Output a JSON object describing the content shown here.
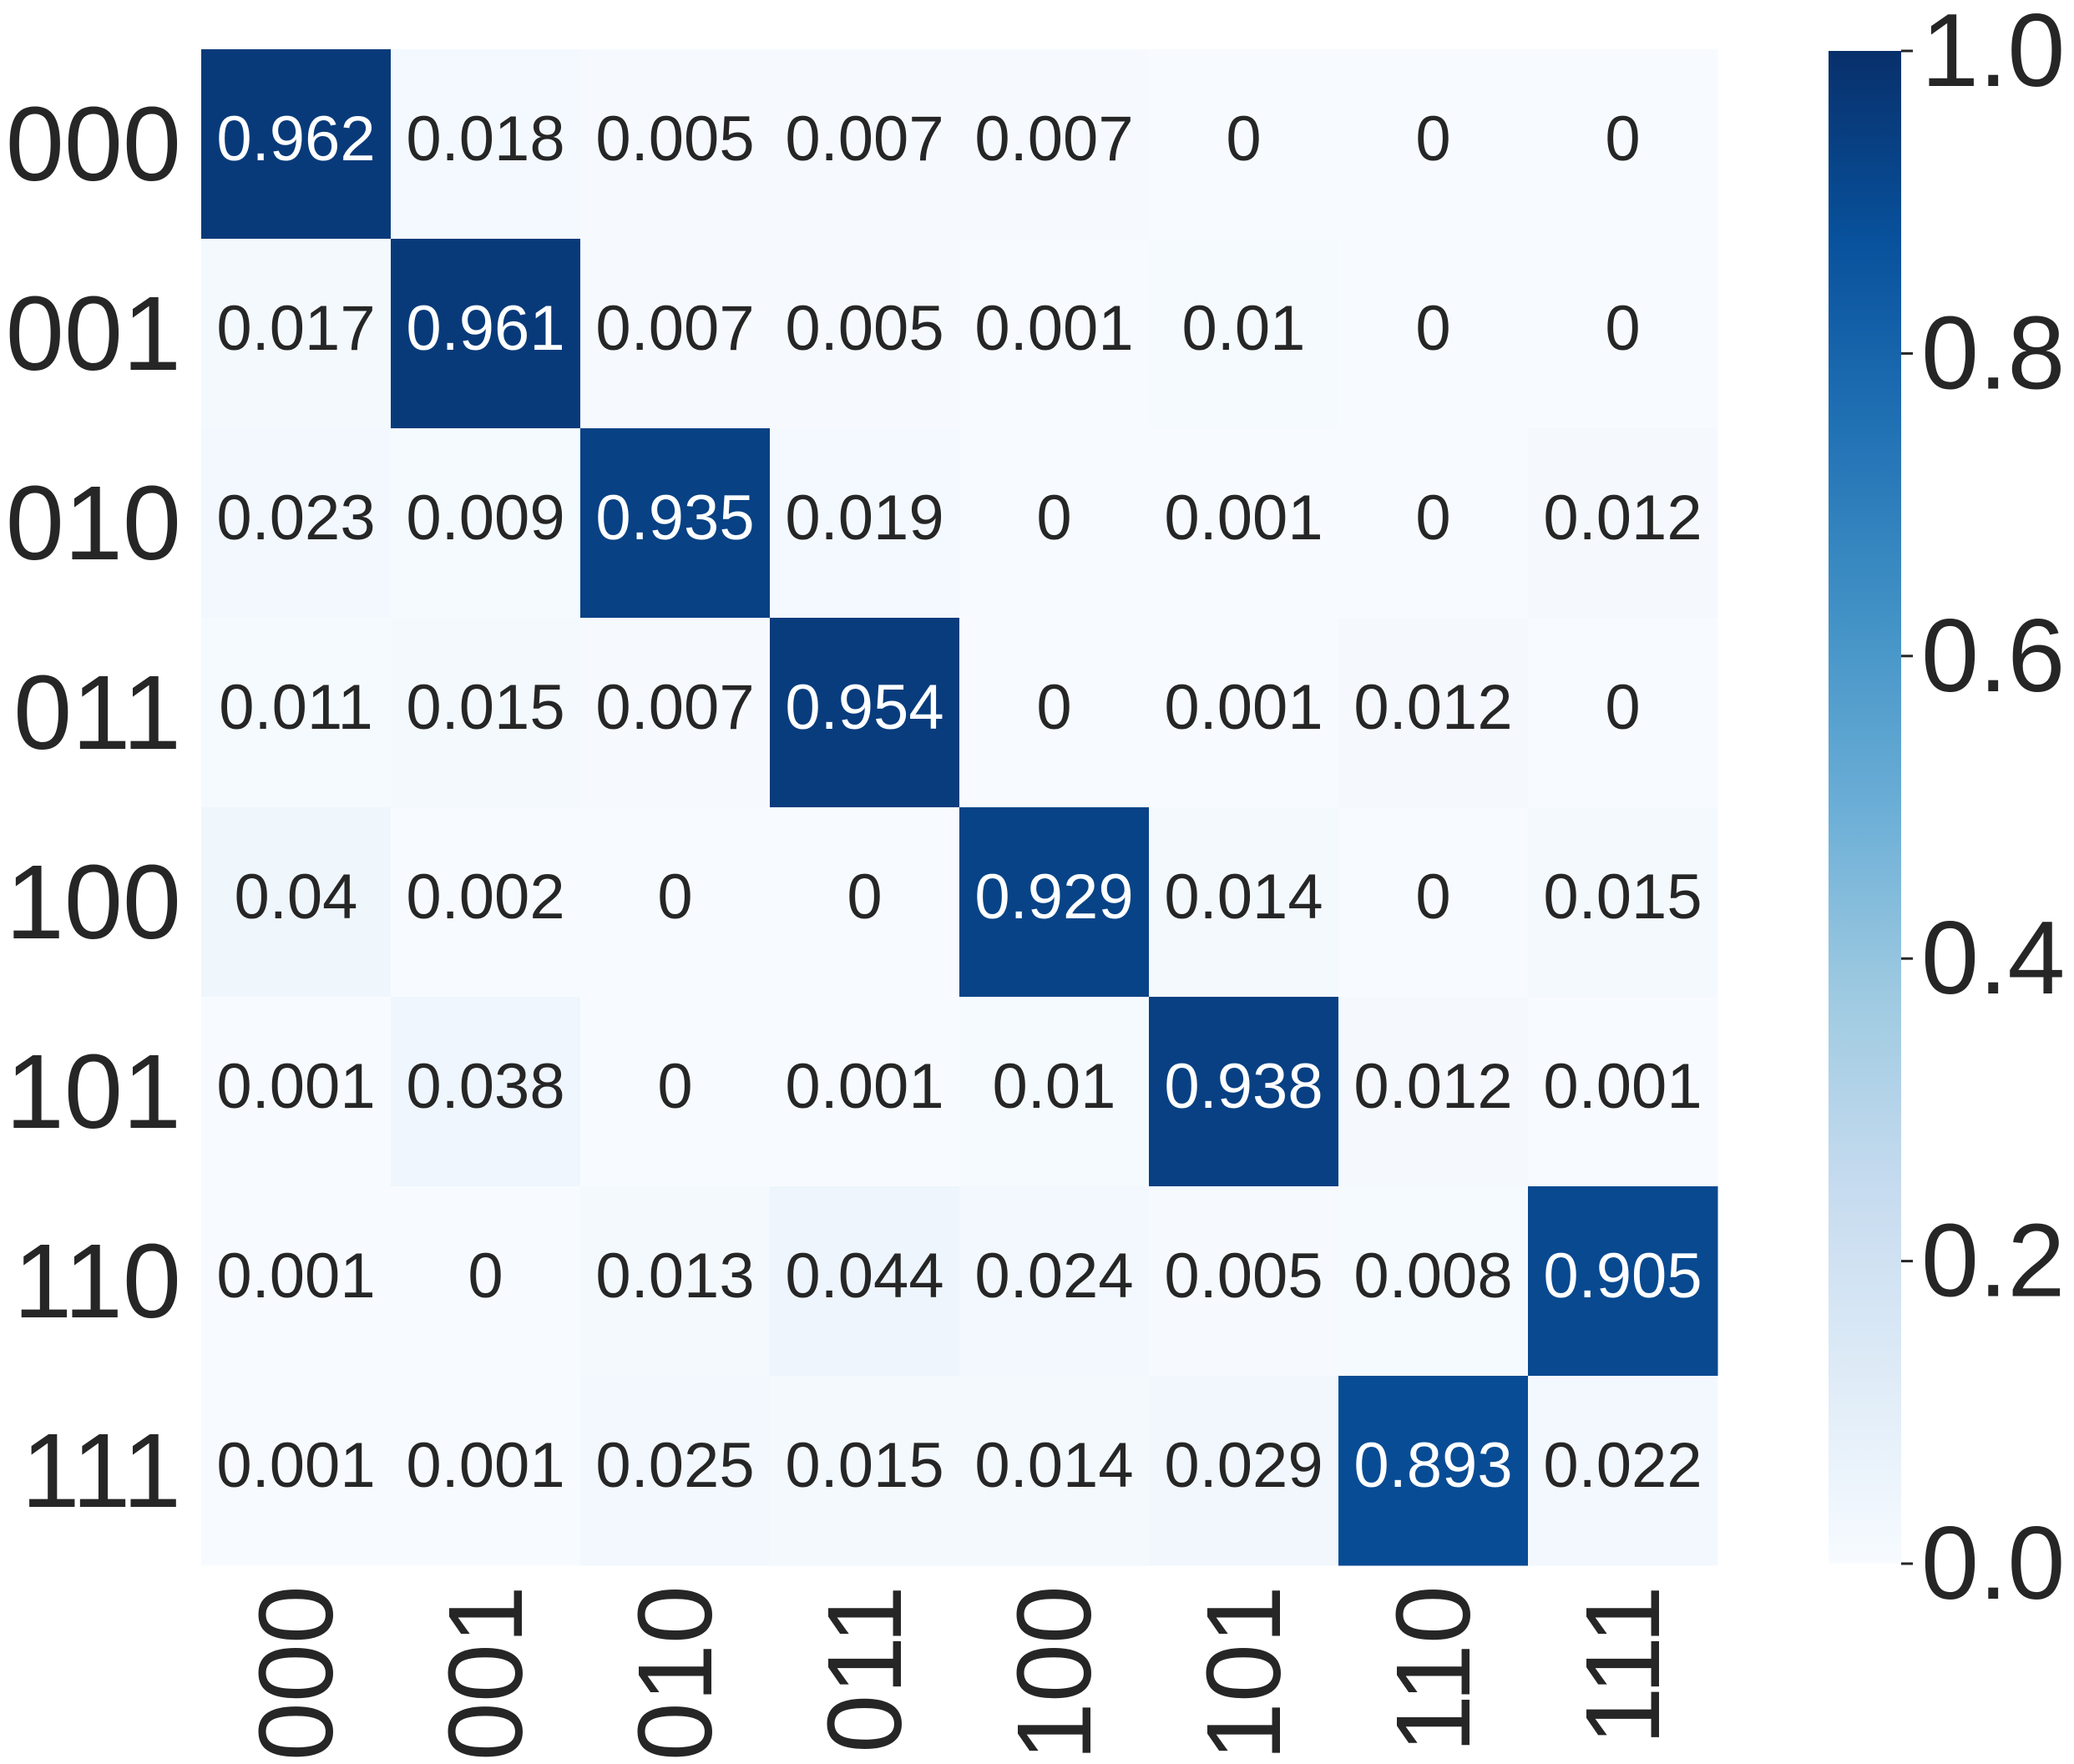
{
  "chart_data": {
    "type": "heatmap",
    "title": "",
    "xlabel": "",
    "ylabel": "",
    "x_categories": [
      "000",
      "001",
      "010",
      "011",
      "100",
      "101",
      "110",
      "111"
    ],
    "y_categories": [
      "000",
      "001",
      "010",
      "011",
      "100",
      "101",
      "110",
      "111"
    ],
    "values": [
      [
        "0.962",
        "0.018",
        "0.005",
        "0.007",
        "0.007",
        "0",
        "0",
        "0"
      ],
      [
        "0.017",
        "0.961",
        "0.007",
        "0.005",
        "0.001",
        "0.01",
        "0",
        "0"
      ],
      [
        "0.023",
        "0.009",
        "0.935",
        "0.019",
        "0",
        "0.001",
        "0",
        "0.012"
      ],
      [
        "0.011",
        "0.015",
        "0.007",
        "0.954",
        "0",
        "0.001",
        "0.012",
        "0"
      ],
      [
        "0.04",
        "0.002",
        "0",
        "0",
        "0.929",
        "0.014",
        "0",
        "0.015"
      ],
      [
        "0.001",
        "0.038",
        "0",
        "0.001",
        "0.01",
        "0.938",
        "0.012",
        "0.001"
      ],
      [
        "0.001",
        "0",
        "0.013",
        "0.044",
        "0.024",
        "0.005",
        "0.008",
        "0.905"
      ],
      [
        "0.001",
        "0.001",
        "0.025",
        "0.015",
        "0.014",
        "0.029",
        "0.893",
        "0.022"
      ]
    ],
    "colorbar": {
      "min": 0.0,
      "max": 1.0,
      "ticks": [
        "0.0",
        "0.2",
        "0.4",
        "0.6",
        "0.8",
        "1.0"
      ],
      "colormap": "Blues",
      "color_low": "#f7fbff",
      "color_high": "#08306b"
    },
    "annotation_color_dark": "#262626",
    "annotation_color_light": "#ffffff",
    "x_tick_rotation": "vertical",
    "grid": false,
    "legend": "colorbar-right"
  }
}
